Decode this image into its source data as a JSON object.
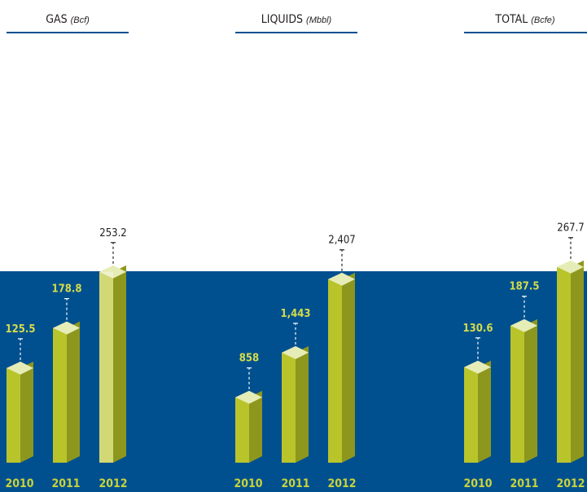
{
  "colors": {
    "background_top": "#ffffff",
    "background_bottom": "#00508f",
    "bar_front": "#b9c42b",
    "bar_side": "#8d971e",
    "bar_top": "#e6ecb6",
    "year_label": "#c9d43a",
    "value_on_dark": "#d4dc4a",
    "text": "#231f20"
  },
  "chart_data": [
    {
      "type": "bar",
      "title": "GAS",
      "unit": "(Bcf)",
      "categories": [
        "2010",
        "2011",
        "2012"
      ],
      "values": [
        125.5,
        178.8,
        253.2
      ],
      "value_labels": [
        "125.5",
        "178.8",
        "253.2"
      ],
      "highlight": [
        2
      ]
    },
    {
      "type": "bar",
      "title": "LIQUIDS",
      "unit": "(Mbbl)",
      "categories": [
        "2010",
        "2011",
        "2012"
      ],
      "values": [
        858,
        1443,
        2407
      ],
      "value_labels": [
        "858",
        "1,443",
        "2,407"
      ],
      "highlight": []
    },
    {
      "type": "bar",
      "title": "TOTAL",
      "unit": "(Bcfe)",
      "categories": [
        "2010",
        "2011",
        "2012"
      ],
      "values": [
        130.6,
        187.5,
        267.7
      ],
      "value_labels": [
        "130.6",
        "187.5",
        "267.7"
      ],
      "highlight": []
    }
  ]
}
